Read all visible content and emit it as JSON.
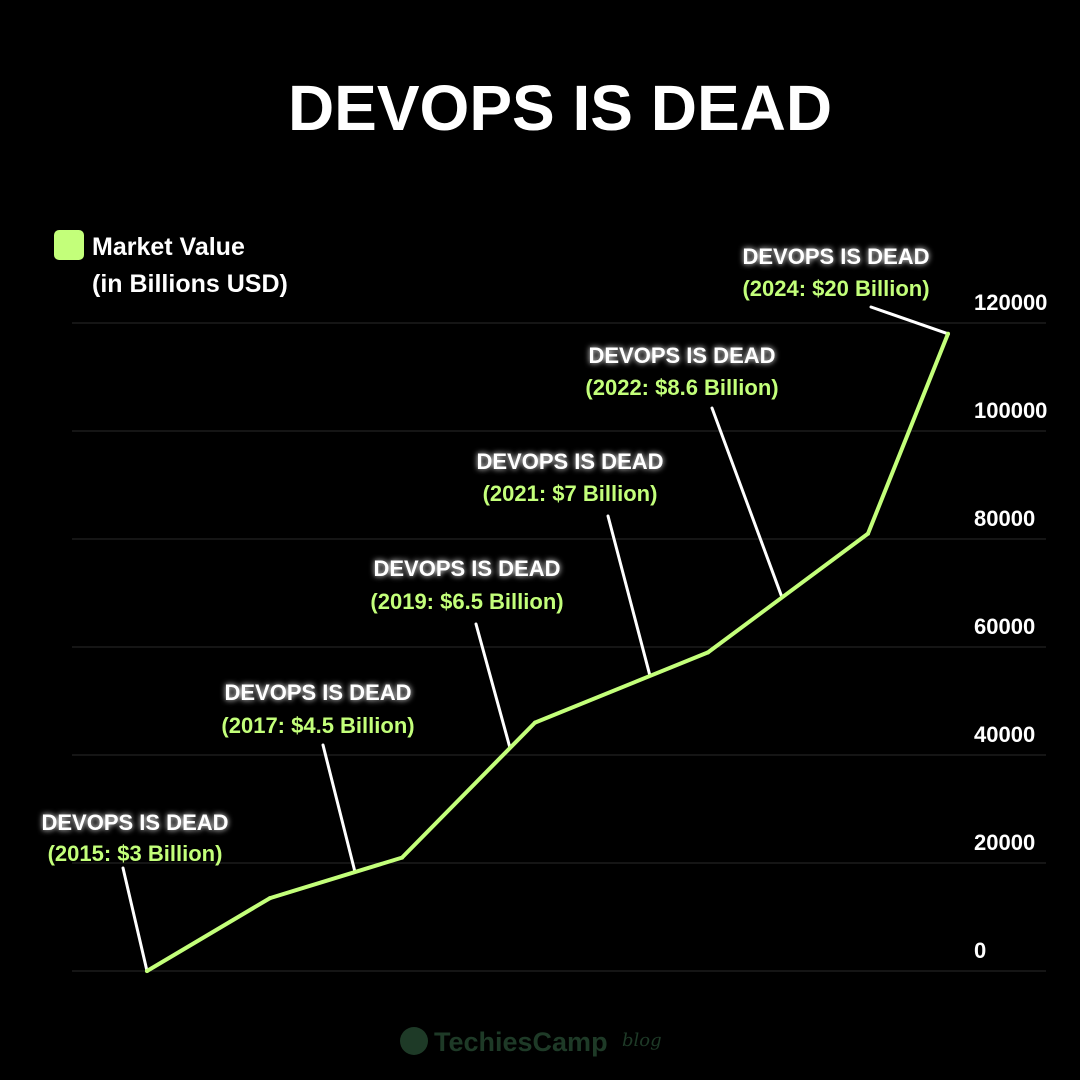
{
  "title": "DEVOPS IS DEAD",
  "legend": {
    "line1": "Market Value",
    "line2": "(in Billions USD)"
  },
  "brand": {
    "name": "TechiesCamp",
    "suffix": "blog"
  },
  "colors": {
    "background": "#000000",
    "line": "#c3ff7a",
    "text": "#ffffff",
    "grid": "#2a2a2a",
    "brand": "#1e3a27"
  },
  "chart_data": {
    "type": "line",
    "series": [
      {
        "name": "Market Value (in Billions USD)",
        "values": [
          0,
          13500,
          21000,
          46000,
          59000,
          81000,
          118000
        ]
      }
    ],
    "yticks": [
      "0",
      "20000",
      "40000",
      "60000",
      "80000",
      "100000",
      "120000"
    ],
    "ylim": [
      0,
      120000
    ],
    "grid": true,
    "legend": "top-left",
    "annotations": [
      {
        "head": "DEVOPS IS DEAD",
        "sub": "(2015: $3 Billion)"
      },
      {
        "head": "DEVOPS IS DEAD",
        "sub": "(2017: $4.5 Billion)"
      },
      {
        "head": "DEVOPS IS DEAD",
        "sub": "(2019: $6.5 Billion)"
      },
      {
        "head": "DEVOPS IS DEAD",
        "sub": "(2021: $7 Billion)"
      },
      {
        "head": "DEVOPS IS DEAD",
        "sub": "(2022: $8.6 Billion)"
      },
      {
        "head": "DEVOPS IS DEAD",
        "sub": "(2024: $20 Billion)"
      }
    ]
  }
}
